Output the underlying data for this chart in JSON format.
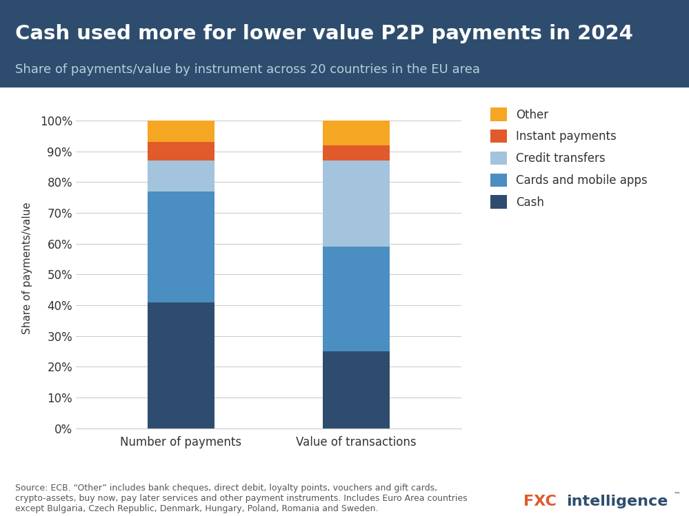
{
  "title": "Cash used more for lower value P2P payments in 2024",
  "subtitle": "Share of payments/value by instrument across 20 countries in the EU area",
  "ylabel": "Share of payments/value",
  "categories": [
    "Number of payments",
    "Value of transactions"
  ],
  "segments": [
    "Cash",
    "Cards and mobile apps",
    "Credit transfers",
    "Instant payments",
    "Other"
  ],
  "values": {
    "Number of payments": [
      41,
      36,
      10,
      6,
      7
    ],
    "Value of transactions": [
      25,
      34,
      28,
      5,
      8
    ]
  },
  "colors": [
    "#2e4d6e",
    "#4a8ec2",
    "#a3c4dc",
    "#e05a2b",
    "#f5a623"
  ],
  "header_bg": "#2e4d6e",
  "header_title_color": "#ffffff",
  "header_subtitle_color": "#b8cfe0",
  "chart_bg": "#ffffff",
  "grid_color": "#cccccc",
  "axis_label_color": "#333333",
  "tick_label_color": "#333333",
  "footer_text": "Source: ECB. “Other” includes bank cheques, direct debit, loyalty points, vouchers and gift cards,\ncrypto-assets, buy now, pay later services and other payment instruments. Includes Euro Area countries\nexcept Bulgaria, Czech Republic, Denmark, Hungary, Poland, Romania and Sweden.",
  "logo_fxc_color": "#e05a2b",
  "logo_intel_color": "#2e4d6e",
  "bar_width": 0.38,
  "title_fontsize": 21,
  "subtitle_fontsize": 13,
  "ylabel_fontsize": 11,
  "tick_fontsize": 12,
  "legend_fontsize": 12,
  "footer_fontsize": 9,
  "xlim": [
    -0.6,
    1.6
  ]
}
